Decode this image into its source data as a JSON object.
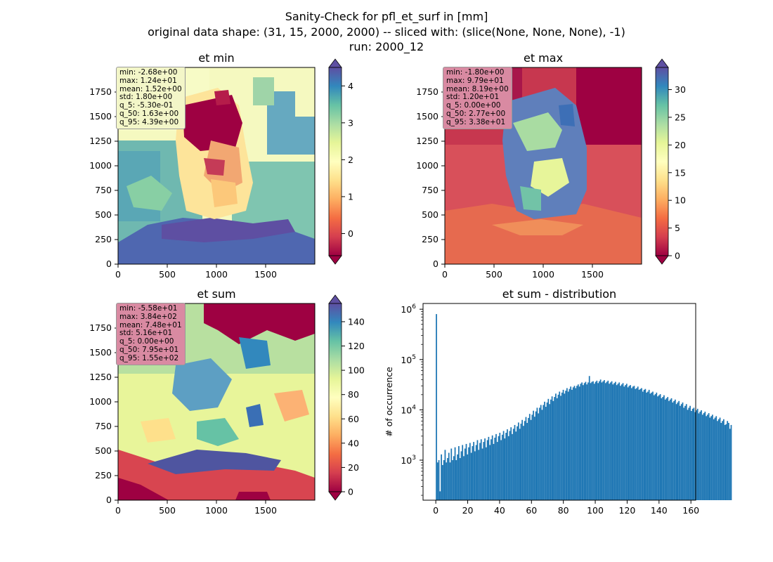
{
  "figure": {
    "title_line1": "Sanity-Check for pfl_et_surf in [mm]",
    "title_line2": "original data shape: (31, 15, 2000, 2000) -- sliced with: (slice(None, None, None), -1)",
    "title_line3": "run: 2000_12"
  },
  "chart_data": [
    {
      "type": "heatmap",
      "title": "et min",
      "colormap": "Spectral",
      "xticks": [
        "0",
        "500",
        "1000",
        "1500"
      ],
      "yticks": [
        "0",
        "250",
        "500",
        "750",
        "1000",
        "1250",
        "1500",
        "1750"
      ],
      "xlim": [
        0,
        2000
      ],
      "ylim": [
        0,
        2000
      ],
      "colorbar": {
        "ticks": [
          0,
          1,
          2,
          3,
          4
        ],
        "labels": [
          "0",
          "1",
          "2",
          "3",
          "4"
        ],
        "range": [
          -0.6,
          4.5
        ],
        "extend": "both"
      },
      "stats": [
        "min: -2.68e+00",
        "max: 1.24e+01",
        "mean: 1.52e+00",
        "std: 1.80e+00",
        "q_5: -5.30e-01",
        "q_50: 1.63e+00",
        "q_95: 4.39e+00"
      ],
      "stats_box_color": "#f3f6c8"
    },
    {
      "type": "heatmap",
      "title": "et max",
      "colormap": "Spectral",
      "xticks": [
        "0",
        "500",
        "1000",
        "1500"
      ],
      "yticks": [
        "0",
        "250",
        "500",
        "750",
        "1000",
        "1250",
        "1500",
        "1750"
      ],
      "xlim": [
        0,
        2000
      ],
      "ylim": [
        0,
        2000
      ],
      "colorbar": {
        "ticks": [
          0,
          5,
          10,
          15,
          20,
          25,
          30
        ],
        "labels": [
          "0",
          "5",
          "10",
          "15",
          "20",
          "25",
          "30"
        ],
        "range": [
          0,
          34
        ],
        "extend": "both"
      },
      "stats": [
        "min: -1.80e+00",
        "max: 9.79e+01",
        "mean: 8.19e+00",
        "std: 1.20e+01",
        "q_5: 0.00e+00",
        "q_50: 2.77e+00",
        "q_95: 3.38e+01"
      ],
      "stats_box_color": "#d98aa2"
    },
    {
      "type": "heatmap",
      "title": "et sum",
      "colormap": "Spectral",
      "xticks": [
        "0",
        "500",
        "1000",
        "1500"
      ],
      "yticks": [
        "0",
        "250",
        "500",
        "750",
        "1000",
        "1250",
        "1500",
        "1750"
      ],
      "xlim": [
        0,
        2000
      ],
      "ylim": [
        0,
        2000
      ],
      "colorbar": {
        "ticks": [
          0,
          20,
          40,
          60,
          80,
          100,
          120,
          140
        ],
        "labels": [
          "0",
          "20",
          "40",
          "60",
          "80",
          "100",
          "120",
          "140"
        ],
        "range": [
          0,
          155
        ],
        "extend": "both"
      },
      "stats": [
        "min: -5.58e+01",
        "max: 3.84e+02",
        "mean: 7.48e+01",
        "std: 5.16e+01",
        "q_5: 0.00e+00",
        "q_50: 7.95e+01",
        "q_95: 1.55e+02"
      ],
      "stats_box_color": "#d98aa2"
    },
    {
      "type": "bar",
      "title": "et sum - distribution",
      "ylabel": "# of occurrence",
      "xlabel": "",
      "yscale": "log",
      "color": "#1f77b4",
      "xlim": [
        -8,
        163
      ],
      "ylim": [
        160,
        1300000
      ],
      "xticks": [
        0,
        20,
        40,
        60,
        80,
        100,
        120,
        140,
        160
      ],
      "xtick_labels": [
        "0",
        "20",
        "40",
        "60",
        "80",
        "100",
        "120",
        "140",
        "160"
      ],
      "yticks": [
        1000,
        10000,
        100000,
        1000000
      ],
      "ytick_bases": [
        "10",
        "10",
        "10",
        "10"
      ],
      "ytick_exps": [
        "3",
        "4",
        "5",
        "6"
      ],
      "bin_start": 0,
      "bin_width": 0.78,
      "values": [
        800000,
        900,
        1000,
        240,
        1300,
        800,
        1000,
        1600,
        900,
        1100,
        1400,
        900,
        1700,
        1000,
        1200,
        1800,
        1000,
        1300,
        1900,
        1100,
        1500,
        2000,
        1200,
        1700,
        2100,
        1300,
        1800,
        2200,
        1400,
        1900,
        2300,
        1500,
        2000,
        2500,
        1600,
        2200,
        2600,
        1700,
        2300,
        2700,
        1800,
        2500,
        2900,
        2000,
        2600,
        3100,
        2100,
        2800,
        3300,
        2300,
        3000,
        3500,
        2500,
        3200,
        3800,
        2700,
        3500,
        4100,
        3000,
        3800,
        4500,
        3300,
        4200,
        5000,
        3700,
        4700,
        5600,
        4200,
        5300,
        6300,
        4800,
        6000,
        7200,
        5500,
        6900,
        8300,
        6300,
        8000,
        9600,
        7300,
        9300,
        11000,
        8500,
        11000,
        12500,
        10000,
        12500,
        14500,
        11500,
        14000,
        16500,
        13000,
        16000,
        18500,
        15000,
        18000,
        21000,
        17000,
        20000,
        23000,
        19000,
        22000,
        25000,
        21000,
        24000,
        27000,
        23000,
        26000,
        29000,
        25000,
        28000,
        30000,
        27000,
        30000,
        32000,
        29000,
        33000,
        35000,
        31000,
        34000,
        36000,
        32000,
        35000,
        47000,
        34000,
        36000,
        37000,
        33000,
        36000,
        38000,
        34000,
        37000,
        40000,
        35000,
        37000,
        39000,
        34000,
        36000,
        38000,
        33000,
        35000,
        37000,
        32000,
        34000,
        36000,
        31000,
        33000,
        35000,
        30000,
        32000,
        34000,
        29000,
        31000,
        33000,
        28000,
        30000,
        31000,
        27000,
        29000,
        30000,
        26000,
        27000,
        29000,
        25000,
        26000,
        27000,
        23000,
        25000,
        26000,
        22000,
        23000,
        25000,
        21000,
        22000,
        23000,
        19500,
        20500,
        22000,
        18500,
        19500,
        20500,
        17000,
        18000,
        19500,
        16000,
        17000,
        18000,
        15000,
        16000,
        17000,
        14000,
        15000,
        16000,
        13000,
        14000,
        15000,
        12000,
        13000,
        14000,
        11000,
        12000,
        13000,
        10000,
        11000,
        12000,
        9500,
        10500,
        11000,
        9000,
        9800,
        10500,
        8500,
        9200,
        9800,
        8000,
        8600,
        9200,
        7500,
        8000,
        8600,
        7000,
        7500,
        8000,
        6500,
        7000,
        7500,
        6000,
        6500,
        7000,
        5500,
        6000,
        6500,
        5000,
        5200,
        6000,
        5500,
        4200,
        5000
      ]
    }
  ]
}
